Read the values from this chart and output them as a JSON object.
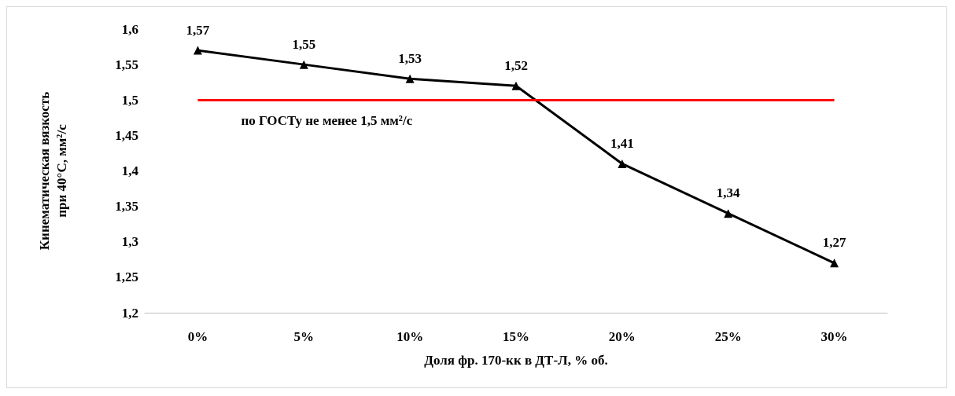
{
  "chart_data": {
    "type": "line",
    "xlabel": "Доля фр. 170-кк в ДТ-Л, % об.",
    "ylabel": "Кинематическая вязкость при 40°С, мм²/с",
    "categories": [
      "0%",
      "5%",
      "10%",
      "15%",
      "20%",
      "25%",
      "30%"
    ],
    "series": [
      {
        "color": "#000000",
        "values": [
          1.57,
          1.55,
          1.53,
          1.52,
          1.41,
          1.34,
          1.27
        ],
        "value_labels": [
          "1,57",
          "1,55",
          "1,53",
          "1,52",
          "1,41",
          "1,34",
          "1,27"
        ]
      }
    ],
    "ylim": [
      1.2,
      1.6
    ],
    "yticks": [
      {
        "value": 1.2,
        "label": "1,2"
      },
      {
        "value": 1.25,
        "label": "1,25"
      },
      {
        "value": 1.3,
        "label": "1,3"
      },
      {
        "value": 1.35,
        "label": "1,35"
      },
      {
        "value": 1.4,
        "label": "1,4"
      },
      {
        "value": 1.45,
        "label": "1,45"
      },
      {
        "value": 1.5,
        "label": "1,5"
      },
      {
        "value": 1.55,
        "label": "1,55"
      },
      {
        "value": 1.6,
        "label": "1,6"
      }
    ],
    "ref_lines": [
      {
        "axis": "y",
        "value": 1.5,
        "label": "по ГОСТу не менее 1,5 мм²/с",
        "color": "#ff0000"
      }
    ],
    "marker": "triangle",
    "line_style": "solid"
  }
}
